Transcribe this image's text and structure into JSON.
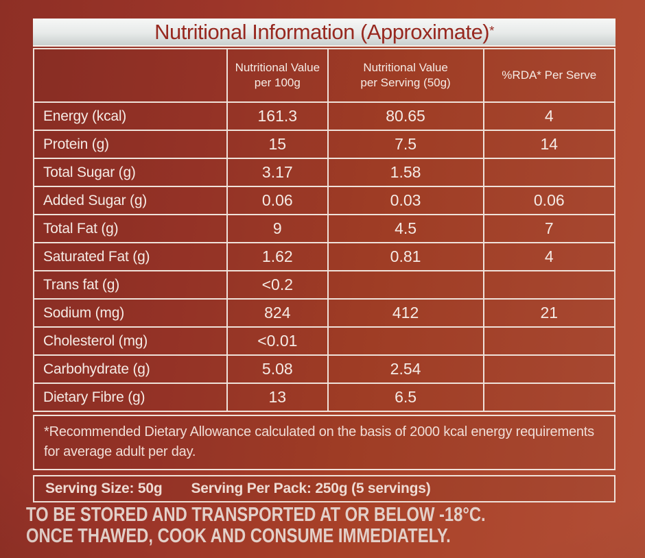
{
  "title": {
    "text": "Nutritional Information (Approximate)",
    "asterisk": "*"
  },
  "colors": {
    "background_left": "#8e2f25",
    "background_right": "#b24e36",
    "title_bar_background": "#e7eae9",
    "title_text": "#97281f",
    "table_border": "#f0e2da",
    "table_text": "#f5ebe5"
  },
  "table": {
    "headers": {
      "col_label": "",
      "col_per_100g": "Nutritional Value\nper 100g",
      "col_per_serving": "Nutritional Value\nper Serving (50g)",
      "col_rda": "%RDA* Per Serve"
    },
    "rows": [
      {
        "label": "Energy (kcal)",
        "per_100g": "161.3",
        "per_serving": "80.65",
        "rda": "4"
      },
      {
        "label": "Protein (g)",
        "per_100g": "15",
        "per_serving": "7.5",
        "rda": "14"
      },
      {
        "label": "Total Sugar (g)",
        "per_100g": "3.17",
        "per_serving": "1.58",
        "rda": ""
      },
      {
        "label": "Added Sugar (g)",
        "per_100g": "0.06",
        "per_serving": "0.03",
        "rda": "0.06"
      },
      {
        "label": "Total Fat (g)",
        "per_100g": "9",
        "per_serving": "4.5",
        "rda": "7"
      },
      {
        "label": "Saturated Fat (g)",
        "per_100g": "1.62",
        "per_serving": "0.81",
        "rda": "4"
      },
      {
        "label": "Trans fat (g)",
        "per_100g": "<0.2",
        "per_serving": "",
        "rda": ""
      },
      {
        "label": "Sodium (mg)",
        "per_100g": "824",
        "per_serving": "412",
        "rda": "21"
      },
      {
        "label": "Cholesterol (mg)",
        "per_100g": "<0.01",
        "per_serving": "",
        "rda": ""
      },
      {
        "label": "Carbohydrate (g)",
        "per_100g": "5.08",
        "per_serving": "2.54",
        "rda": ""
      },
      {
        "label": "Dietary Fibre (g)",
        "per_100g": "13",
        "per_serving": "6.5",
        "rda": ""
      }
    ]
  },
  "footnote": "*Recommended Dietary Allowance calculated on the basis of 2000 kcal energy requirements for average adult per day.",
  "serving": {
    "size_label": "Serving Size: 50g",
    "pack_label": "Serving Per Pack:  250g (5 servings)"
  },
  "storage_notice": {
    "line1": "TO BE STORED AND TRANSPORTED AT OR BELOW -18°C.",
    "line2": "ONCE THAWED, COOK AND CONSUME IMMEDIATELY."
  }
}
